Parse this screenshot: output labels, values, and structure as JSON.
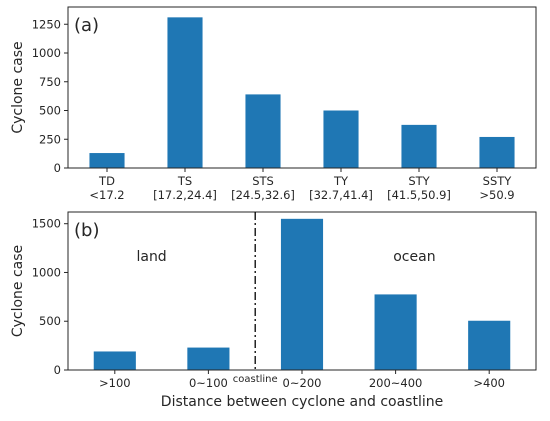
{
  "chart_data": [
    {
      "type": "bar",
      "panel_label": "(a)",
      "ylabel": "Cyclone case",
      "xlabel": "",
      "ylim": [
        0,
        1400
      ],
      "yticks": [
        0,
        250,
        500,
        750,
        1000,
        1250
      ],
      "ytick_labels": [
        "0",
        "250",
        "500",
        "750",
        "1000",
        "1250"
      ],
      "categories": [
        {
          "line1": "TD",
          "line2": "<17.2"
        },
        {
          "line1": "TS",
          "line2": "[17.2,24.4]"
        },
        {
          "line1": "STS",
          "line2": "[24.5,32.6]"
        },
        {
          "line1": "TY",
          "line2": "[32.7,41.4]"
        },
        {
          "line1": "STY",
          "line2": "[41.5,50.9]"
        },
        {
          "line1": "SSTY",
          "line2": ">50.9"
        }
      ],
      "values": [
        130,
        1310,
        640,
        500,
        375,
        270
      ],
      "bar_color": "#1f77b4",
      "grid": false
    },
    {
      "type": "bar",
      "panel_label": "(b)",
      "ylabel": "Cyclone case",
      "xlabel": "Distance between cyclone and coastline",
      "ylim": [
        0,
        1620
      ],
      "yticks": [
        0,
        500,
        1000,
        1500
      ],
      "ytick_labels": [
        "0",
        "500",
        "1000",
        "1500"
      ],
      "categories": [
        {
          "line1": ">100"
        },
        {
          "line1": "0~100"
        },
        {
          "line1": "0~200"
        },
        {
          "line1": "200~400"
        },
        {
          "line1": ">400"
        }
      ],
      "values": [
        190,
        230,
        1550,
        775,
        505
      ],
      "bar_color": "#1f77b4",
      "grid": false,
      "annotations": {
        "land": "land",
        "ocean": "ocean",
        "coastline": "coastline"
      }
    }
  ]
}
